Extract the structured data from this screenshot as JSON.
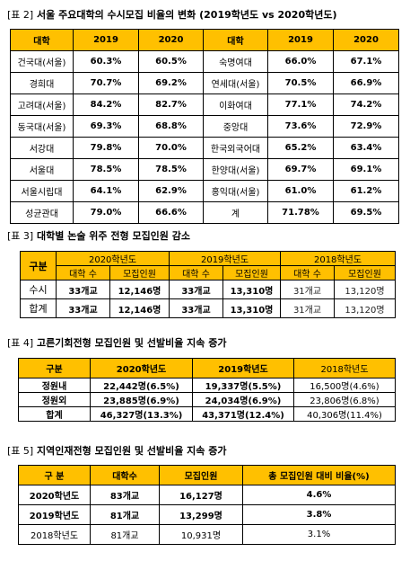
{
  "table2": {
    "caption_prefix": "[표 2]",
    "caption": "서울 주요대학의 수시모집 비율의 변화 (2019학년도 vs 2020학년도)",
    "headers": [
      "대학",
      "2019",
      "2020",
      "대학",
      "2019",
      "2020"
    ],
    "rows": [
      [
        "건국대(서울)",
        "60.3%",
        "60.5%",
        "숙명여대",
        "66.0%",
        "67.1%"
      ],
      [
        "경희대",
        "70.7%",
        "69.2%",
        "연세대(서울)",
        "70.5%",
        "66.9%"
      ],
      [
        "고려대(서울)",
        "84.2%",
        "82.7%",
        "이화여대",
        "77.1%",
        "74.2%"
      ],
      [
        "동국대(서울)",
        "69.3%",
        "68.8%",
        "중앙대",
        "73.6%",
        "72.9%"
      ],
      [
        "서강대",
        "79.8%",
        "70.0%",
        "한국외국어대",
        "65.2%",
        "63.4%"
      ],
      [
        "서울대",
        "78.5%",
        "78.5%",
        "한양대(서울)",
        "69.7%",
        "69.1%"
      ],
      [
        "서울시립대",
        "64.1%",
        "62.9%",
        "홍익대(서울)",
        "61.0%",
        "61.2%"
      ],
      [
        "성균관대",
        "79.0%",
        "66.6%",
        "계",
        "71.78%",
        "69.5%"
      ]
    ]
  },
  "table3": {
    "caption_prefix": "[표 3]",
    "caption": "대학별 논술 위주 전형 모집인원 감소",
    "col_group": "구분",
    "years": [
      "2020학년도",
      "2019학년도",
      "2018학년도"
    ],
    "subheaders": [
      "대학 수",
      "모집인원",
      "대학 수",
      "모집인원",
      "대학 수",
      "모집인원"
    ],
    "rows": [
      [
        "수시",
        "33개교",
        "12,146명",
        "33개교",
        "13,310명",
        "31개교",
        "13,120명"
      ],
      [
        "합계",
        "33개교",
        "12,146명",
        "33개교",
        "13,310명",
        "31개교",
        "13,120명"
      ]
    ]
  },
  "table4": {
    "caption_prefix": "[표 4]",
    "caption": "고른기회전형 모집인원 및 선발비율 지속 증가",
    "headers": [
      "구분",
      "2020학년도",
      "2019학년도",
      "2018학년도"
    ],
    "rows": [
      [
        "정원내",
        "22,442명(6.5%)",
        "19,337명(5.5%)",
        "16,500명(4.6%)"
      ],
      [
        "정원외",
        "23,885명(6.9%)",
        "24,034명(6.9%)",
        "23,806명(6.8%)"
      ],
      [
        "합계",
        "46,327명(13.3%)",
        "43,371명(12.4%)",
        "40,306명(11.4%)"
      ]
    ]
  },
  "table5": {
    "caption_prefix": "[표 5]",
    "caption": "지역인재전형 모집인원 및 선발비율 지속 증가",
    "headers": [
      "구 분",
      "대학수",
      "모집인원",
      "총 모집인원 대비 비율(%)"
    ],
    "rows": [
      [
        "2020학년도",
        "83개교",
        "16,127명",
        "4.6%"
      ],
      [
        "2019학년도",
        "81개교",
        "13,299명",
        "3.8%"
      ],
      [
        "2018학년도",
        "81개교",
        "10,931명",
        "3.1%"
      ]
    ]
  }
}
